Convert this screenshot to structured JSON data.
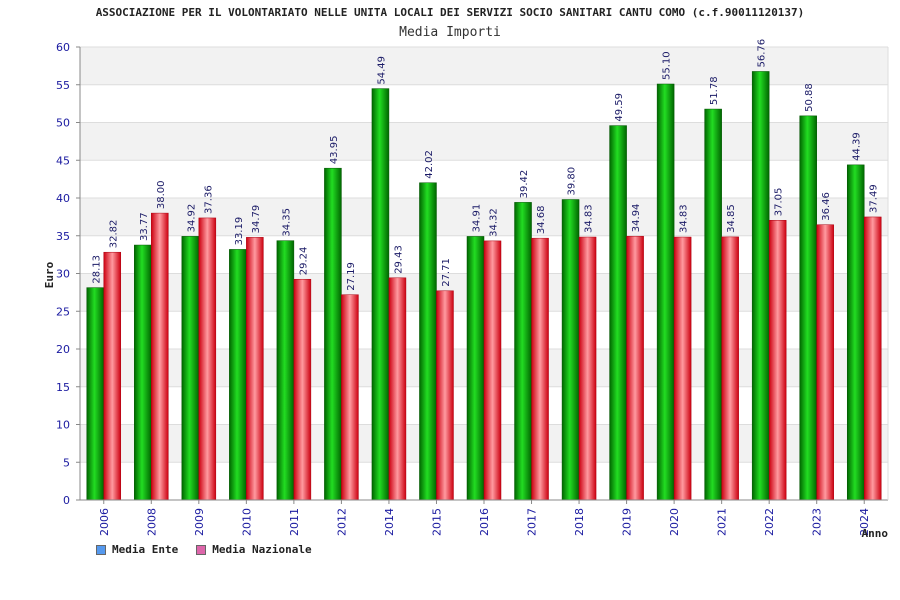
{
  "chart_data": {
    "type": "bar",
    "title": "ASSOCIAZIONE PER IL VOLONTARIATO NELLE UNITA LOCALI DEI SERVIZI SOCIO SANITARI CANTU COMO (c.f.90011120137)",
    "subtitle": "Media Importi",
    "xlabel": "Anno",
    "ylabel": "Euro",
    "ylim": [
      0,
      60
    ],
    "yticks": [
      0,
      5,
      10,
      15,
      20,
      25,
      30,
      35,
      40,
      45,
      50,
      55,
      60
    ],
    "categories": [
      "2006",
      "2008",
      "2009",
      "2010",
      "2011",
      "2012",
      "2014",
      "2015",
      "2016",
      "2017",
      "2018",
      "2019",
      "2020",
      "2021",
      "2022",
      "2023",
      "2024"
    ],
    "series": [
      {
        "name": "Media Ente",
        "color": "#00aa00",
        "legend_color": "#5599ee",
        "values": [
          28.13,
          33.77,
          34.92,
          33.19,
          34.35,
          43.95,
          54.49,
          42.02,
          34.91,
          39.42,
          39.8,
          49.59,
          55.1,
          51.78,
          56.76,
          50.88,
          44.39
        ]
      },
      {
        "name": "Media Nazionale",
        "color": "#e8202a",
        "legend_color": "#dd66aa",
        "values": [
          32.82,
          38.0,
          37.36,
          34.79,
          29.24,
          27.19,
          29.43,
          27.71,
          34.32,
          34.68,
          34.83,
          34.94,
          34.83,
          34.85,
          37.05,
          36.46,
          37.49
        ]
      }
    ],
    "grid": true,
    "legend": "bottom-left"
  }
}
